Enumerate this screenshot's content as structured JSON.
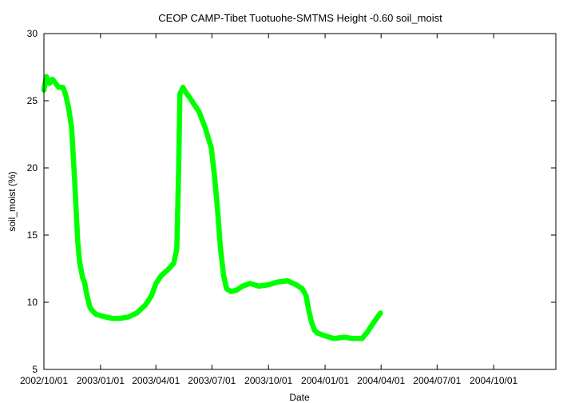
{
  "chart_data": {
    "type": "scatter",
    "title": "CEOP CAMP-Tibet Tuotuohe-SMTMS Height -0.60 soil_moist",
    "xlabel": "Date",
    "ylabel": "soil_moist (%)",
    "xlim": [
      "2002-10-01",
      "2005-01-10"
    ],
    "ylim": [
      5,
      30
    ],
    "grid": false,
    "legend": "none",
    "marker_color": "#00ff00",
    "x_ticks": [
      "2002/10/01",
      "2003/01/01",
      "2003/04/01",
      "2003/07/01",
      "2003/10/01",
      "2004/01/01",
      "2004/04/01",
      "2004/07/01",
      "2004/10/01"
    ],
    "y_ticks": [
      "5",
      "10",
      "15",
      "20",
      "25",
      "30"
    ],
    "series": [
      {
        "x": [
          "2002-10-01",
          "2002-10-05",
          "2002-10-10",
          "2002-10-15",
          "2002-10-20",
          "2002-10-25",
          "2002-11-01",
          "2002-11-05",
          "2002-11-10",
          "2002-11-15",
          "2002-11-20",
          "2002-11-25",
          "2002-11-28",
          "2002-12-01",
          "2002-12-03",
          "2002-12-06",
          "2002-12-10",
          "2002-12-15",
          "2002-12-20",
          "2002-12-25",
          "2003-01-01",
          "2003-01-10",
          "2003-01-20",
          "2003-02-01",
          "2003-02-15",
          "2003-03-01",
          "2003-03-15",
          "2003-03-25",
          "2003-04-01",
          "2003-04-10",
          "2003-04-20",
          "2003-04-30",
          "2003-05-05",
          "2003-05-08",
          "2003-05-10",
          "2003-05-15",
          "2003-05-20",
          "2003-05-25",
          "2003-06-01",
          "2003-06-10",
          "2003-06-20",
          "2003-06-30",
          "2003-07-05",
          "2003-07-10",
          "2003-07-15",
          "2003-07-20",
          "2003-07-25",
          "2003-08-01",
          "2003-08-10",
          "2003-08-20",
          "2003-09-01",
          "2003-09-15",
          "2003-10-01",
          "2003-10-15",
          "2003-11-01",
          "2003-11-15",
          "2003-11-25",
          "2003-12-01",
          "2003-12-05",
          "2003-12-10",
          "2003-12-15",
          "2003-12-20",
          "2004-01-01",
          "2004-01-15",
          "2004-02-01",
          "2004-02-15",
          "2004-03-01",
          "2004-03-10",
          "2004-03-20",
          "2004-03-31"
        ],
        "values": [
          25.8,
          26.8,
          26.3,
          26.6,
          26.3,
          26.0,
          26.0,
          25.5,
          24.5,
          23.0,
          19.0,
          14.5,
          13.0,
          12.3,
          11.8,
          11.5,
          10.5,
          9.6,
          9.3,
          9.1,
          9.0,
          8.9,
          8.8,
          8.8,
          8.9,
          9.2,
          9.8,
          10.5,
          11.4,
          12.0,
          12.4,
          12.9,
          14.0,
          20.0,
          25.5,
          26.0,
          25.6,
          25.3,
          24.8,
          24.2,
          23.0,
          21.5,
          19.5,
          17.0,
          14.0,
          12.0,
          11.0,
          10.8,
          10.9,
          11.2,
          11.4,
          11.2,
          11.3,
          11.5,
          11.6,
          11.3,
          11.0,
          10.5,
          9.5,
          8.5,
          7.9,
          7.7,
          7.5,
          7.3,
          7.4,
          7.3,
          7.3,
          7.8,
          8.5,
          9.2
        ]
      }
    ]
  }
}
